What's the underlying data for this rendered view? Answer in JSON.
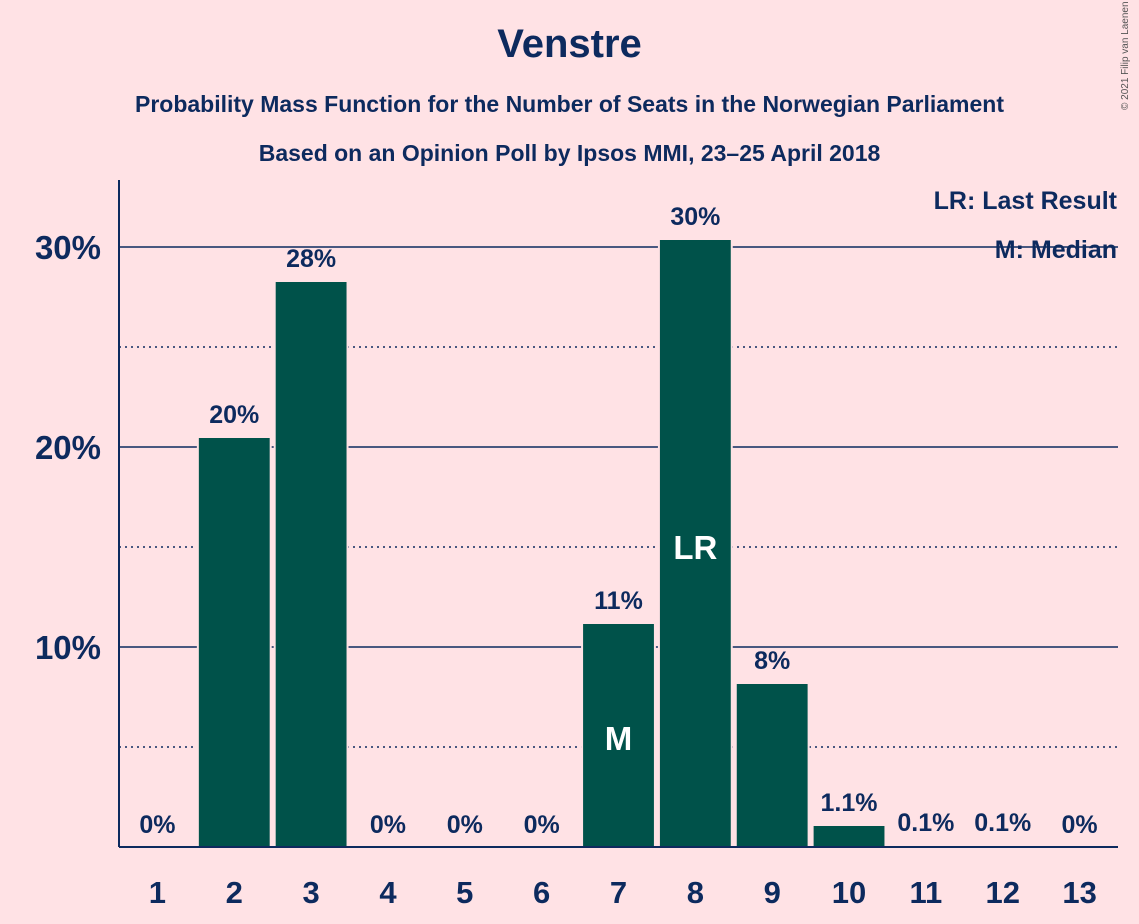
{
  "title": "Venstre",
  "subtitle_1": "Probability Mass Function for the Number of Seats in the Norwegian Parliament",
  "subtitle_2": "Based on an Opinion Poll by Ipsos MMI, 23–25 April 2018",
  "copyright": "© 2021 Filip van Laenen",
  "colors": {
    "background": "#FFE2E5",
    "bar": "#00524A",
    "text": "#0D2A5E",
    "bar_label": "#FFFFFF"
  },
  "chart_data": {
    "type": "bar",
    "categories": [
      "1",
      "2",
      "3",
      "4",
      "5",
      "6",
      "7",
      "8",
      "9",
      "10",
      "11",
      "12",
      "13"
    ],
    "values": [
      0,
      20.5,
      28.3,
      0,
      0,
      0,
      11.2,
      30.4,
      8.2,
      1.1,
      0.1,
      0.1,
      0
    ],
    "value_labels": [
      "0%",
      "20%",
      "28%",
      "0%",
      "0%",
      "0%",
      "11%",
      "30%",
      "8%",
      "1.1%",
      "0.1%",
      "0.1%",
      "0%"
    ],
    "ylim": [
      0,
      33
    ],
    "yticks": [
      10,
      20,
      30
    ],
    "ytick_labels": [
      "10%",
      "20%",
      "30%"
    ],
    "minor_gridlines": [
      5,
      15,
      25
    ],
    "markers": {
      "7": "M",
      "8": "LR"
    },
    "legend": [
      "LR: Last Result",
      "M: Median"
    ],
    "legend_position": "top-right",
    "grid": true
  }
}
